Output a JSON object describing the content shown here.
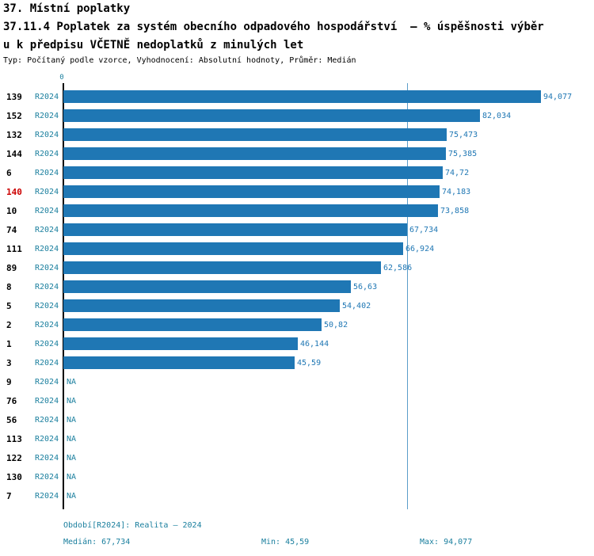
{
  "header": {
    "line1": "37. Místní poplatky",
    "line2": "37.11.4 Poplatek za systém obecního odpadového hospodářství  – % úspěšnosti výběr",
    "line3": "u k předpisu VČETNĚ nedoplatků z minulých let",
    "meta": "Typ: Počítaný podle vzorce, Vyhodnocení: Absolutní hodnoty, Průměr: Medián"
  },
  "chart_data": {
    "type": "bar",
    "orientation": "horizontal",
    "x_ticks": [
      "0"
    ],
    "xlim": [
      0,
      94.077
    ],
    "median_value": 67.734,
    "period": "R2024",
    "legend_position": "none",
    "rows": [
      {
        "id": "139",
        "period": "R2024",
        "value": 94.077,
        "label": "94,077",
        "highlight": false
      },
      {
        "id": "152",
        "period": "R2024",
        "value": 82.034,
        "label": "82,034",
        "highlight": false
      },
      {
        "id": "132",
        "period": "R2024",
        "value": 75.473,
        "label": "75,473",
        "highlight": false
      },
      {
        "id": "144",
        "period": "R2024",
        "value": 75.385,
        "label": "75,385",
        "highlight": false
      },
      {
        "id": "6",
        "period": "R2024",
        "value": 74.72,
        "label": "74,72",
        "highlight": false
      },
      {
        "id": "140",
        "period": "R2024",
        "value": 74.183,
        "label": "74,183",
        "highlight": true
      },
      {
        "id": "10",
        "period": "R2024",
        "value": 73.858,
        "label": "73,858",
        "highlight": false
      },
      {
        "id": "74",
        "period": "R2024",
        "value": 67.734,
        "label": "67,734",
        "highlight": false
      },
      {
        "id": "111",
        "period": "R2024",
        "value": 66.924,
        "label": "66,924",
        "highlight": false
      },
      {
        "id": "89",
        "period": "R2024",
        "value": 62.586,
        "label": "62,586",
        "highlight": false
      },
      {
        "id": "8",
        "period": "R2024",
        "value": 56.63,
        "label": "56,63",
        "highlight": false
      },
      {
        "id": "5",
        "period": "R2024",
        "value": 54.402,
        "label": "54,402",
        "highlight": false
      },
      {
        "id": "2",
        "period": "R2024",
        "value": 50.82,
        "label": "50,82",
        "highlight": false
      },
      {
        "id": "1",
        "period": "R2024",
        "value": 46.144,
        "label": "46,144",
        "highlight": false
      },
      {
        "id": "3",
        "period": "R2024",
        "value": 45.59,
        "label": "45,59",
        "highlight": false
      },
      {
        "id": "9",
        "period": "R2024",
        "value": null,
        "label": "NA",
        "highlight": false
      },
      {
        "id": "76",
        "period": "R2024",
        "value": null,
        "label": "NA",
        "highlight": false
      },
      {
        "id": "56",
        "period": "R2024",
        "value": null,
        "label": "NA",
        "highlight": false
      },
      {
        "id": "113",
        "period": "R2024",
        "value": null,
        "label": "NA",
        "highlight": false
      },
      {
        "id": "122",
        "period": "R2024",
        "value": null,
        "label": "NA",
        "highlight": false
      },
      {
        "id": "130",
        "period": "R2024",
        "value": null,
        "label": "NA",
        "highlight": false
      },
      {
        "id": "7",
        "period": "R2024",
        "value": null,
        "label": "NA",
        "highlight": false
      }
    ]
  },
  "footer": {
    "period": "Období[R2024]: Realita – 2024",
    "median": "Medián: 67,734",
    "min": "Min: 45,59",
    "max": "Max: 94,077"
  },
  "colors": {
    "bar": "#1f77b4",
    "teal": "#1a7f9e",
    "highlight": "#cc0000",
    "median_line": "#5b9dc9",
    "axis": "#000000"
  }
}
